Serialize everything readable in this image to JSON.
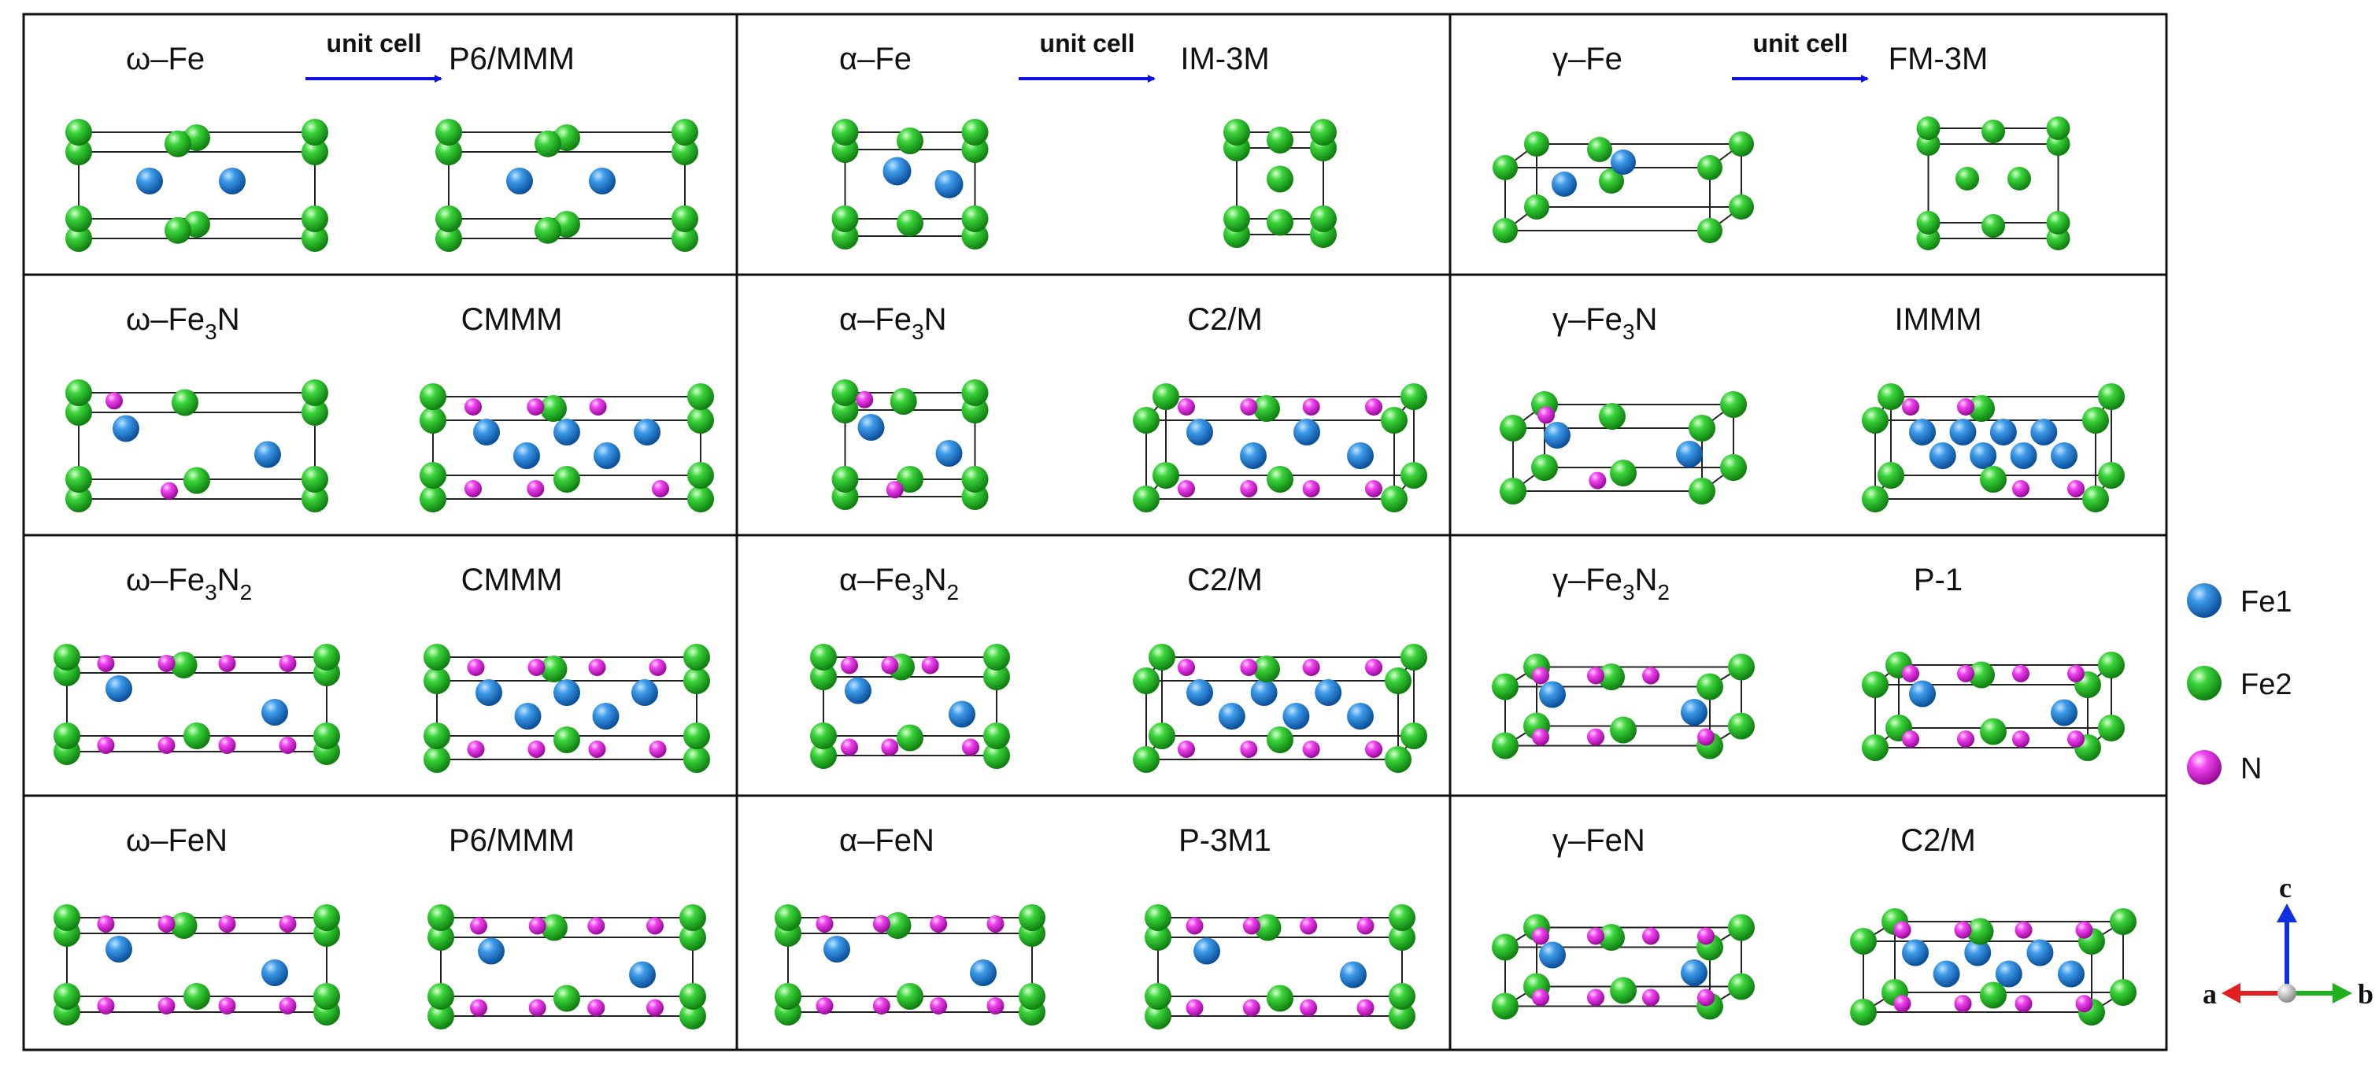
{
  "arrow_label": "unit cell",
  "rows": [
    {
      "cells": [
        {
          "left": {
            "prefix": "ω–Fe",
            "n1": "",
            "mid": "",
            "n2": ""
          },
          "right": "P6/MMM",
          "has_arrow": true
        },
        {
          "left": {
            "prefix": "α–Fe",
            "n1": "",
            "mid": "",
            "n2": ""
          },
          "right": "IM-3M",
          "has_arrow": true
        },
        {
          "left": {
            "prefix": "γ–Fe",
            "n1": "",
            "mid": "",
            "n2": ""
          },
          "right": "FM-3M",
          "has_arrow": true
        }
      ]
    },
    {
      "cells": [
        {
          "left": {
            "prefix": "ω–Fe",
            "n1": "3",
            "mid": "N",
            "n2": ""
          },
          "right": "CMMM",
          "has_arrow": false
        },
        {
          "left": {
            "prefix": "α–Fe",
            "n1": "3",
            "mid": "N",
            "n2": ""
          },
          "right": "C2/M",
          "has_arrow": false
        },
        {
          "left": {
            "prefix": "γ–Fe",
            "n1": "3",
            "mid": "N",
            "n2": ""
          },
          "right": "IMMM",
          "has_arrow": false
        }
      ]
    },
    {
      "cells": [
        {
          "left": {
            "prefix": "ω–Fe",
            "n1": "3",
            "mid": "N",
            "n2": "2"
          },
          "right": "CMMM",
          "has_arrow": false
        },
        {
          "left": {
            "prefix": "α–Fe",
            "n1": "3",
            "mid": "N",
            "n2": "2"
          },
          "right": "C2/M",
          "has_arrow": false
        },
        {
          "left": {
            "prefix": "γ–Fe",
            "n1": "3",
            "mid": "N",
            "n2": "2"
          },
          "right": "P-1",
          "has_arrow": false
        }
      ]
    },
    {
      "cells": [
        {
          "left": {
            "prefix": "ω–FeN",
            "n1": "",
            "mid": "",
            "n2": ""
          },
          "right": "P6/MMM",
          "has_arrow": false
        },
        {
          "left": {
            "prefix": "α–FeN",
            "n1": "",
            "mid": "",
            "n2": ""
          },
          "right": "P-3M1",
          "has_arrow": false
        },
        {
          "left": {
            "prefix": "γ–FeN",
            "n1": "",
            "mid": "",
            "n2": ""
          },
          "right": "C2/M",
          "has_arrow": false
        }
      ]
    }
  ],
  "legend": [
    {
      "label": "Fe1",
      "color": "#1e7fd6"
    },
    {
      "label": "Fe2",
      "color": "#22c022"
    },
    {
      "label": "N",
      "color": "#e020e0"
    }
  ],
  "axes": {
    "a": "a",
    "b": "b",
    "c": "c"
  },
  "colors": {
    "fe1": "#1e7fd6",
    "fe2": "#22c022",
    "n": "#e020e0",
    "arrow": "#1010e0",
    "axis_a": "#e02020",
    "axis_b": "#20b020",
    "axis_c": "#1030e0"
  }
}
